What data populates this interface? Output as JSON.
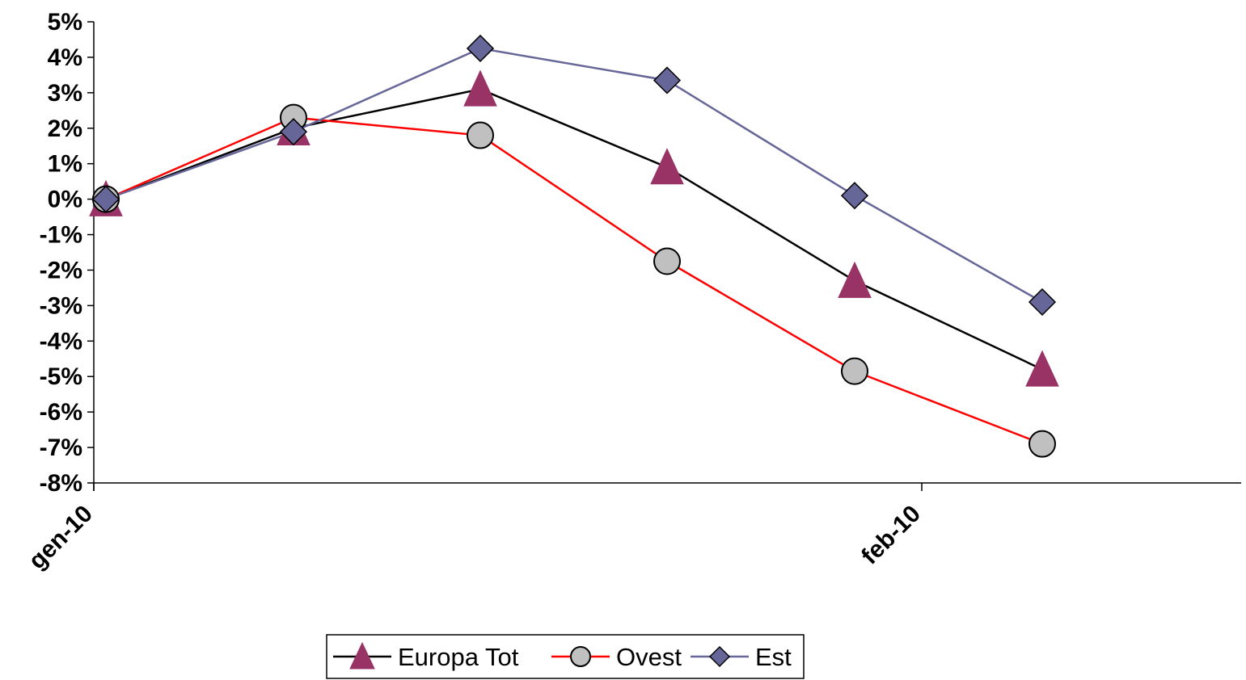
{
  "chart_data": {
    "type": "line",
    "title": "",
    "xlabel": "",
    "ylabel": "",
    "x_tick_labels": [
      "gen-10",
      "feb-10"
    ],
    "x": [
      1,
      2,
      3,
      4,
      5,
      6
    ],
    "y_ticks": [
      "5%",
      "4%",
      "3%",
      "2%",
      "1%",
      "0%",
      "-1%",
      "-2%",
      "-3%",
      "-4%",
      "-5%",
      "-6%",
      "-7%",
      "-8%"
    ],
    "ylim": [
      -8,
      5
    ],
    "grid": false,
    "legend_position": "bottom",
    "series": [
      {
        "name": "Europa Tot",
        "values": [
          0.0,
          2.0,
          3.1,
          0.9,
          -2.3,
          -4.8
        ],
        "color": "#000000",
        "marker": "triangle",
        "marker_color": "#993366"
      },
      {
        "name": "Ovest",
        "values": [
          0.0,
          2.3,
          1.8,
          -1.75,
          -4.85,
          -6.9
        ],
        "color": "#ff0000",
        "marker": "circle",
        "marker_color": "#c0c0c0"
      },
      {
        "name": "Est",
        "values": [
          0.0,
          1.9,
          4.25,
          3.35,
          0.1,
          -2.9
        ],
        "color": "#666699",
        "marker": "diamond",
        "marker_color": "#666699"
      }
    ]
  }
}
